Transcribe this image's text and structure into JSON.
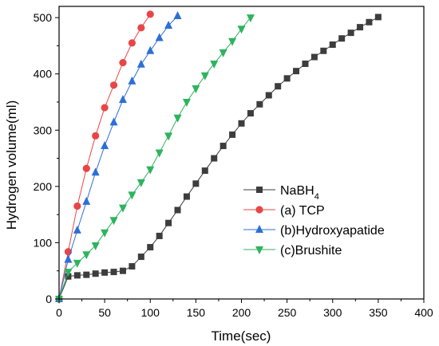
{
  "chart_data": {
    "type": "line",
    "xlabel": "Time(sec)",
    "ylabel": "Hydrogen volume(ml)",
    "xlim": [
      0,
      400
    ],
    "ylim": [
      0,
      520
    ],
    "xticks": [
      0,
      50,
      100,
      150,
      200,
      250,
      300,
      350,
      400
    ],
    "yticks": [
      0,
      100,
      200,
      300,
      400,
      500
    ],
    "legend_position": "center-right",
    "grid": false,
    "series": [
      {
        "name": "NaBH",
        "name_sub": "4",
        "color": "#3d3d3d",
        "marker": "square",
        "x": [
          0,
          10,
          20,
          30,
          40,
          50,
          60,
          70,
          80,
          90,
          100,
          110,
          120,
          130,
          140,
          150,
          160,
          170,
          180,
          190,
          200,
          210,
          220,
          230,
          240,
          250,
          260,
          270,
          280,
          290,
          300,
          310,
          320,
          330,
          340,
          350
        ],
        "y": [
          0,
          40,
          42,
          43,
          45,
          47,
          48,
          50,
          58,
          75,
          92,
          112,
          135,
          158,
          182,
          205,
          228,
          250,
          272,
          292,
          312,
          330,
          346,
          362,
          378,
          392,
          405,
          418,
          430,
          441,
          452,
          463,
          473,
          483,
          492,
          501
        ]
      },
      {
        "name": "(a) TCP",
        "color": "#e84646",
        "marker": "circle",
        "x": [
          0,
          10,
          20,
          30,
          40,
          50,
          60,
          70,
          80,
          90,
          100
        ],
        "y": [
          0,
          84,
          165,
          232,
          290,
          340,
          380,
          420,
          455,
          482,
          506
        ]
      },
      {
        "name": "(b)Hydroxyapatide",
        "color": "#2e6fd6",
        "marker": "triangle-up",
        "x": [
          0,
          10,
          20,
          30,
          40,
          50,
          60,
          70,
          80,
          90,
          100,
          110,
          120,
          130
        ],
        "y": [
          0,
          70,
          122,
          173,
          225,
          272,
          314,
          354,
          387,
          417,
          441,
          464,
          486,
          503
        ]
      },
      {
        "name": "(c)Brushite",
        "color": "#2fb35f",
        "marker": "triangle-down",
        "x": [
          0,
          10,
          20,
          30,
          40,
          50,
          60,
          70,
          80,
          90,
          100,
          110,
          120,
          130,
          140,
          150,
          160,
          170,
          180,
          190,
          200,
          210
        ],
        "y": [
          0,
          48,
          64,
          79,
          95,
          118,
          140,
          162,
          185,
          207,
          230,
          260,
          290,
          322,
          350,
          374,
          397,
          418,
          438,
          458,
          480,
          500
        ]
      }
    ]
  }
}
